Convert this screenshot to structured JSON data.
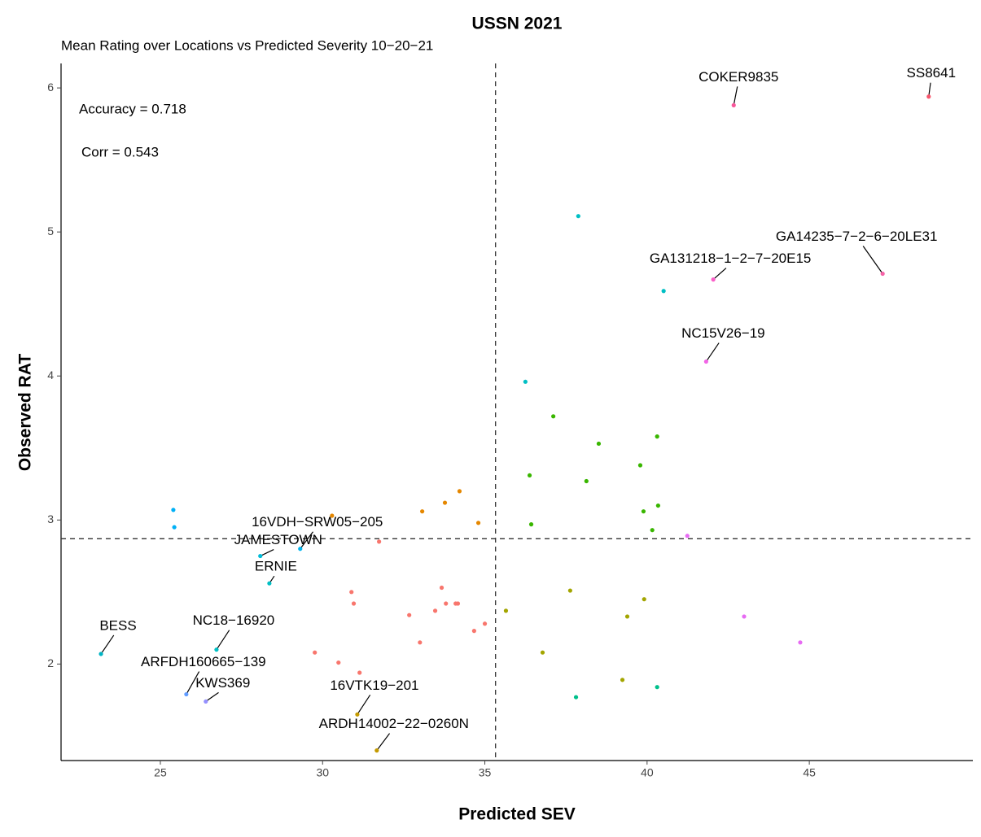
{
  "chart_data": {
    "type": "scatter",
    "title": "USSN 2021",
    "subtitle": "Mean Rating over Locations vs Predicted Severity 10−20−21",
    "x_label": "Predicted SEV",
    "y_label": "Observed RAT",
    "annotations": [
      "Accuracy = 0.718",
      "Corr =  0.543"
    ],
    "xlim": [
      21.94,
      50.04
    ],
    "ylim": [
      1.33,
      6.17
    ],
    "xticks": [
      25,
      30,
      35,
      40,
      45
    ],
    "yticks": [
      2,
      3,
      4,
      5,
      6
    ],
    "vline": 35.33,
    "hline": 2.87,
    "series": [
      {
        "color": "#00b0f6",
        "x": [
          25.4,
          25.43
        ],
        "values": [
          3.07,
          2.95
        ]
      },
      {
        "color": "#00bfc4",
        "x": [
          37.88,
          40.51,
          36.25
        ],
        "values": [
          5.11,
          4.59,
          3.96
        ]
      },
      {
        "color": "#39b600",
        "x": [
          37.11,
          38.51,
          40.31,
          36.38,
          39.79,
          38.13,
          40.34,
          39.89,
          36.43,
          40.16
        ],
        "values": [
          3.72,
          3.53,
          3.58,
          3.31,
          3.38,
          3.27,
          3.1,
          3.06,
          2.97,
          2.93
        ]
      },
      {
        "color": "#e58700",
        "x": [
          34.22,
          33.77,
          33.07,
          30.29,
          34.8
        ],
        "values": [
          3.2,
          3.12,
          3.06,
          3.03,
          2.98
        ]
      },
      {
        "color": "#f8766d",
        "x": [
          31.74,
          30.89,
          30.96,
          33.67,
          33.8,
          34.1,
          34.17,
          33.47,
          32.67,
          35.0,
          34.67,
          33.0,
          29.76,
          30.49,
          31.14
        ],
        "values": [
          2.85,
          2.5,
          2.42,
          2.53,
          2.42,
          2.42,
          2.42,
          2.37,
          2.34,
          2.28,
          2.23,
          2.15,
          2.08,
          2.01,
          1.94
        ]
      },
      {
        "color": "#a3a500",
        "x": [
          35.65,
          37.63,
          39.91,
          39.39,
          36.78,
          39.24
        ],
        "values": [
          2.37,
          2.51,
          2.45,
          2.33,
          2.08,
          1.89
        ]
      },
      {
        "color": "#00c08b",
        "x": [
          37.81,
          40.31
        ],
        "values": [
          1.77,
          1.84
        ]
      },
      {
        "color": "#e76bf3",
        "x": [
          41.24,
          42.99,
          44.72
        ],
        "values": [
          2.89,
          2.33,
          2.15
        ]
      }
    ],
    "labeled_points": [
      {
        "label": "SS8641",
        "x": 48.68,
        "y": 5.94,
        "color": "#f8566d"
      },
      {
        "label": "COKER9835",
        "x": 42.67,
        "y": 5.88,
        "color": "#f8569a"
      },
      {
        "label": "GA14235−7−2−6−20LE31",
        "x": 47.26,
        "y": 4.71,
        "color": "#f564a8"
      },
      {
        "label": "GA131218−1−2−7−20E15",
        "x": 42.04,
        "y": 4.67,
        "color": "#fa5fc8"
      },
      {
        "label": "NC15V26−19",
        "x": 41.82,
        "y": 4.1,
        "color": "#f265e7"
      },
      {
        "label": "16VDH−SRW05−205",
        "x": 29.31,
        "y": 2.8,
        "color": "#00b5ee"
      },
      {
        "label": "JAMESTOWN",
        "x": 28.08,
        "y": 2.75,
        "color": "#00bcd8"
      },
      {
        "label": "ERNIE",
        "x": 28.36,
        "y": 2.56,
        "color": "#00bfc4"
      },
      {
        "label": "BESS",
        "x": 23.17,
        "y": 2.07,
        "color": "#00b4c4"
      },
      {
        "label": "NC18−16920",
        "x": 26.73,
        "y": 2.1,
        "color": "#00bfc4"
      },
      {
        "label": "ARFDH160665−139",
        "x": 25.8,
        "y": 1.79,
        "color": "#619cff"
      },
      {
        "label": "KWS369",
        "x": 26.4,
        "y": 1.74,
        "color": "#9590ff"
      },
      {
        "label": "16VTK19−201",
        "x": 31.07,
        "y": 1.65,
        "color": "#c49a00"
      },
      {
        "label": "ARDH14002−22−0260N",
        "x": 31.67,
        "y": 1.4,
        "color": "#c49a00"
      }
    ]
  }
}
